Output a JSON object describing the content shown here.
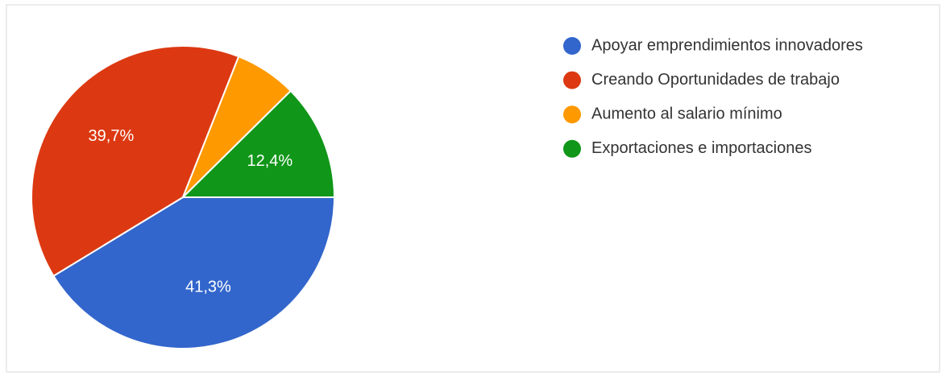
{
  "chart_data": {
    "type": "pie",
    "categories": [
      "Apoyar emprendimientos innovadores",
      "Creando Oportunidades de trabajo",
      "Aumento al salario mínimo",
      "Exportaciones e importaciones"
    ],
    "values": [
      41.3,
      39.7,
      6.6,
      12.4
    ],
    "value_labels": [
      "41,3%",
      "39,7%",
      null,
      "12,4%"
    ],
    "colors": [
      "#3366cc",
      "#dc3912",
      "#ff9900",
      "#109618"
    ],
    "legend": "right"
  }
}
